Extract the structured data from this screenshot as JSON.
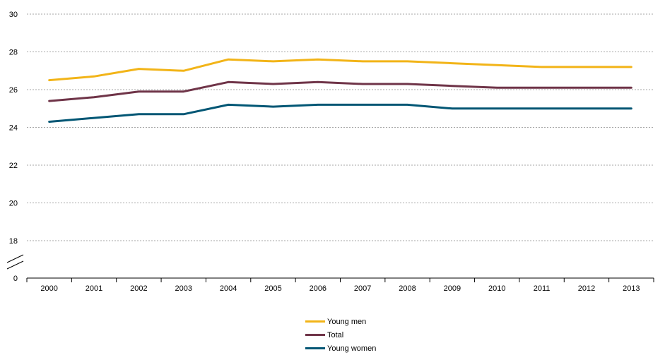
{
  "chart_data": {
    "type": "line",
    "title": "",
    "xlabel": "",
    "ylabel": "",
    "categories": [
      "2000",
      "2001",
      "2002",
      "2003",
      "2004",
      "2005",
      "2006",
      "2007",
      "2008",
      "2009",
      "2010",
      "2011",
      "2012",
      "2013"
    ],
    "y_ticks": [
      "30",
      "28",
      "26",
      "24",
      "22",
      "20",
      "18",
      "0"
    ],
    "ylim": [
      18,
      30
    ],
    "axis_break": true,
    "grid": true,
    "legend_position": "bottom",
    "series": [
      {
        "name": "Young men",
        "color": "#f2b418",
        "values": [
          26.5,
          26.7,
          27.1,
          27.0,
          27.6,
          27.5,
          27.6,
          27.5,
          27.5,
          27.4,
          27.3,
          27.2,
          27.2,
          27.2
        ]
      },
      {
        "name": "Total",
        "color": "#6f3448",
        "values": [
          25.4,
          25.6,
          25.9,
          25.9,
          26.4,
          26.3,
          26.4,
          26.3,
          26.3,
          26.2,
          26.1,
          26.1,
          26.1,
          26.1
        ]
      },
      {
        "name": "Young women",
        "color": "#005674",
        "values": [
          24.3,
          24.5,
          24.7,
          24.7,
          25.2,
          25.1,
          25.2,
          25.2,
          25.2,
          25.0,
          25.0,
          25.0,
          25.0,
          25.0
        ]
      }
    ]
  }
}
